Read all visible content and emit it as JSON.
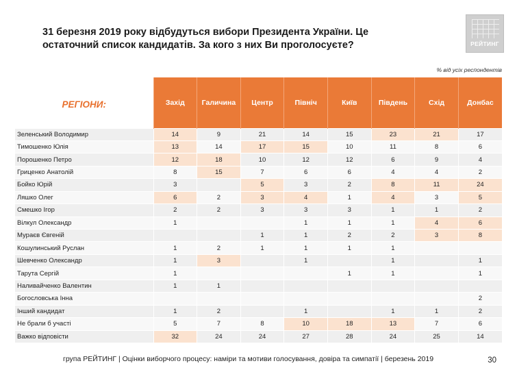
{
  "title": "31 березня 2019 року відбудуться вибори Президента України. Це остаточний список кандидатів. За кого з них Ви проголосуєте?",
  "logo_text": "РЕЙТИНГ",
  "subnote": "% від усіх респондентів",
  "table": {
    "corner_label": "РЕГІОНИ:",
    "regions": [
      "Захід",
      "Галичина",
      "Центр",
      "Північ",
      "Київ",
      "Південь",
      "Схід",
      "Донбас"
    ],
    "rows": [
      {
        "name": "Зеленський Володимир",
        "values": [
          "14",
          "9",
          "21",
          "14",
          "15",
          "23",
          "21",
          "17"
        ],
        "hl": [
          true,
          false,
          false,
          false,
          false,
          true,
          true,
          false
        ]
      },
      {
        "name": "Тимошенко Юлія",
        "values": [
          "13",
          "14",
          "17",
          "15",
          "10",
          "11",
          "8",
          "6"
        ],
        "hl": [
          true,
          false,
          true,
          true,
          false,
          false,
          false,
          false
        ]
      },
      {
        "name": "Порошенко Петро",
        "values": [
          "12",
          "18",
          "10",
          "12",
          "12",
          "6",
          "9",
          "4"
        ],
        "hl": [
          true,
          true,
          false,
          false,
          false,
          false,
          false,
          false
        ]
      },
      {
        "name": "Гриценко Анатолій",
        "values": [
          "8",
          "15",
          "7",
          "6",
          "6",
          "4",
          "4",
          "2"
        ],
        "hl": [
          false,
          true,
          false,
          false,
          false,
          false,
          false,
          false
        ]
      },
      {
        "name": "Бойко Юрій",
        "values": [
          "3",
          "",
          "5",
          "3",
          "2",
          "8",
          "11",
          "24"
        ],
        "hl": [
          false,
          false,
          true,
          false,
          false,
          true,
          true,
          true
        ]
      },
      {
        "name": "Ляшко Олег",
        "values": [
          "6",
          "2",
          "3",
          "4",
          "1",
          "4",
          "3",
          "5"
        ],
        "hl": [
          true,
          false,
          true,
          true,
          false,
          true,
          false,
          true
        ]
      },
      {
        "name": "Смешко Ігор",
        "values": [
          "2",
          "2",
          "3",
          "3",
          "3",
          "1",
          "1",
          "2"
        ],
        "hl": [
          false,
          false,
          false,
          false,
          false,
          false,
          false,
          false
        ]
      },
      {
        "name": "Вілкул Олександр",
        "values": [
          "1",
          "",
          "",
          "1",
          "1",
          "1",
          "4",
          "6"
        ],
        "hl": [
          false,
          false,
          false,
          false,
          false,
          false,
          true,
          true
        ]
      },
      {
        "name": "Мураєв Євгеній",
        "values": [
          "",
          "",
          "1",
          "1",
          "2",
          "2",
          "3",
          "8"
        ],
        "hl": [
          false,
          false,
          false,
          false,
          false,
          false,
          true,
          true
        ]
      },
      {
        "name": "Кошулинський Руслан",
        "values": [
          "1",
          "2",
          "1",
          "1",
          "1",
          "1",
          "",
          ""
        ],
        "hl": [
          false,
          false,
          false,
          false,
          false,
          false,
          false,
          false
        ]
      },
      {
        "name": "Шевченко Олександр",
        "values": [
          "1",
          "3",
          "",
          "1",
          "",
          "1",
          "",
          "1"
        ],
        "hl": [
          false,
          true,
          false,
          false,
          false,
          false,
          false,
          false
        ]
      },
      {
        "name": "Тарута Сергій",
        "values": [
          "1",
          "",
          "",
          "",
          "1",
          "1",
          "",
          "1"
        ],
        "hl": [
          false,
          false,
          false,
          false,
          false,
          false,
          false,
          false
        ]
      },
      {
        "name": "Наливайченко Валентин",
        "values": [
          "1",
          "1",
          "",
          "",
          "",
          "",
          "",
          ""
        ],
        "hl": [
          false,
          false,
          false,
          false,
          false,
          false,
          false,
          false
        ]
      },
      {
        "name": "Богословська Інна",
        "values": [
          "",
          "",
          "",
          "",
          "",
          "",
          "",
          "2"
        ],
        "hl": [
          false,
          false,
          false,
          false,
          false,
          false,
          false,
          false
        ]
      },
      {
        "name": "Інший кандидат",
        "values": [
          "1",
          "2",
          "",
          "1",
          "",
          "1",
          "1",
          "2"
        ],
        "hl": [
          false,
          false,
          false,
          false,
          false,
          false,
          false,
          false
        ]
      },
      {
        "name": "Не брали б участі",
        "values": [
          "5",
          "7",
          "8",
          "10",
          "18",
          "13",
          "7",
          "6"
        ],
        "hl": [
          false,
          false,
          false,
          true,
          true,
          true,
          false,
          false
        ]
      },
      {
        "name": "Важко відповісти",
        "values": [
          "32",
          "24",
          "24",
          "27",
          "28",
          "24",
          "25",
          "14"
        ],
        "hl": [
          true,
          false,
          false,
          false,
          false,
          false,
          false,
          false
        ]
      }
    ]
  },
  "footer": "група РЕЙТИНГ | Оцінки виборчого процесу: наміри та мотиви голосування, довіра та симпатії | березень 2019",
  "page_number": "30"
}
